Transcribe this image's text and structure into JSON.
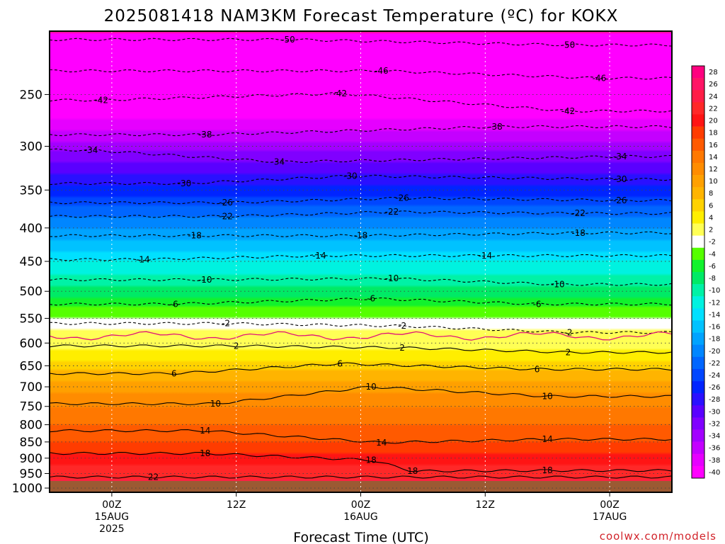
{
  "chart_data": {
    "type": "heatmap",
    "title": "2025081418 NAM3KM Forecast Temperature (ºC) for KOKX",
    "xlabel": "Forecast Time (UTC)",
    "ylabel": "",
    "credit": "coolwx.com/models",
    "x_ticks": [
      {
        "hour": 6,
        "lines": [
          "00Z",
          "15AUG",
          "2025"
        ]
      },
      {
        "hour": 18,
        "lines": [
          "12Z"
        ]
      },
      {
        "hour": 30,
        "lines": [
          "00Z",
          "16AUG"
        ]
      },
      {
        "hour": 42,
        "lines": [
          "12Z"
        ]
      },
      {
        "hour": 54,
        "lines": [
          "00Z",
          "17AUG"
        ]
      }
    ],
    "x_range": [
      0,
      60
    ],
    "y_ticks": [
      250,
      300,
      350,
      400,
      450,
      500,
      550,
      600,
      650,
      700,
      750,
      800,
      850,
      900,
      950,
      1000
    ],
    "y_range_hPa": [
      200,
      1015
    ],
    "y_scale": "log-pressure",
    "grid": true,
    "colorbar": {
      "placement": "right",
      "levels": [
        28,
        26,
        24,
        22,
        20,
        18,
        16,
        14,
        12,
        10,
        8,
        6,
        4,
        2,
        -2,
        -4,
        -6,
        -8,
        -10,
        -12,
        -14,
        -16,
        -18,
        -20,
        -22,
        -24,
        -26,
        -28,
        -30,
        -32,
        -34,
        -36,
        -38,
        -40
      ],
      "colors": [
        "#ff007f",
        "#ff1466",
        "#ff1e46",
        "#ff2828",
        "#ff1414",
        "#ff3c00",
        "#ff5a00",
        "#ff7800",
        "#ff8c00",
        "#ffa000",
        "#ffb400",
        "#ffd200",
        "#ffee00",
        "#ffff55",
        "#ffffff",
        "#55ff00",
        "#11f22d",
        "#00ea66",
        "#00f2a6",
        "#00f2e0",
        "#00e0ff",
        "#00c2ff",
        "#00a3ff",
        "#0086ff",
        "#0066ff",
        "#0046ff",
        "#0024ff",
        "#2a10ff",
        "#5a00ff",
        "#8000ff",
        "#a300ff",
        "#c400ff",
        "#e600ff",
        "#ff00ff"
      ]
    },
    "isotherm_labels": [
      {
        "value": -50,
        "points": [
          {
            "x": 23,
            "p": 206
          },
          {
            "x": 50,
            "p": 210
          }
        ]
      },
      {
        "value": -46,
        "points": [
          {
            "x": 32,
            "p": 230
          },
          {
            "x": 53,
            "p": 236
          }
        ]
      },
      {
        "value": -42,
        "points": [
          {
            "x": 5,
            "p": 255
          },
          {
            "x": 28,
            "p": 249
          },
          {
            "x": 50,
            "p": 265
          }
        ]
      },
      {
        "value": -38,
        "points": [
          {
            "x": 15,
            "p": 288
          },
          {
            "x": 43,
            "p": 280
          }
        ]
      },
      {
        "value": -34,
        "points": [
          {
            "x": 4,
            "p": 304
          },
          {
            "x": 22,
            "p": 317
          },
          {
            "x": 55,
            "p": 311
          }
        ]
      },
      {
        "value": -30,
        "points": [
          {
            "x": 13,
            "p": 342
          },
          {
            "x": 29,
            "p": 333
          },
          {
            "x": 55,
            "p": 337
          }
        ]
      },
      {
        "value": -26,
        "points": [
          {
            "x": 17,
            "p": 366
          },
          {
            "x": 34,
            "p": 360
          },
          {
            "x": 55,
            "p": 363
          }
        ]
      },
      {
        "value": -22,
        "points": [
          {
            "x": 17,
            "p": 384
          },
          {
            "x": 33,
            "p": 378
          },
          {
            "x": 51,
            "p": 380
          }
        ]
      },
      {
        "value": -18,
        "points": [
          {
            "x": 14,
            "p": 411
          },
          {
            "x": 30,
            "p": 411
          },
          {
            "x": 51,
            "p": 407
          }
        ]
      },
      {
        "value": -14,
        "points": [
          {
            "x": 9,
            "p": 447
          },
          {
            "x": 26,
            "p": 441
          },
          {
            "x": 42,
            "p": 441
          }
        ]
      },
      {
        "value": -10,
        "points": [
          {
            "x": 15,
            "p": 480
          },
          {
            "x": 33,
            "p": 478
          },
          {
            "x": 49,
            "p": 488
          }
        ]
      },
      {
        "value": -6,
        "points": [
          {
            "x": 12,
            "p": 523
          },
          {
            "x": 31,
            "p": 513
          },
          {
            "x": 47,
            "p": 523
          }
        ]
      },
      {
        "value": -2,
        "points": [
          {
            "x": 17,
            "p": 560
          },
          {
            "x": 34,
            "p": 565
          },
          {
            "x": 50,
            "p": 578
          }
        ]
      },
      {
        "value": 2,
        "points": [
          {
            "x": 18,
            "p": 606
          },
          {
            "x": 34,
            "p": 610
          },
          {
            "x": 50,
            "p": 620
          }
        ]
      },
      {
        "value": 6,
        "points": [
          {
            "x": 12,
            "p": 668
          },
          {
            "x": 28,
            "p": 645
          },
          {
            "x": 47,
            "p": 658
          }
        ]
      },
      {
        "value": 10,
        "points": [
          {
            "x": 16,
            "p": 743
          },
          {
            "x": 31,
            "p": 700
          },
          {
            "x": 48,
            "p": 724
          }
        ]
      },
      {
        "value": 14,
        "points": [
          {
            "x": 15,
            "p": 817
          },
          {
            "x": 32,
            "p": 852
          },
          {
            "x": 48,
            "p": 842
          }
        ]
      },
      {
        "value": 18,
        "points": [
          {
            "x": 15,
            "p": 885
          },
          {
            "x": 31,
            "p": 906
          },
          {
            "x": 35,
            "p": 942
          },
          {
            "x": 48,
            "p": 940
          }
        ]
      },
      {
        "value": 22,
        "points": [
          {
            "x": 10,
            "p": 962
          }
        ]
      }
    ]
  }
}
